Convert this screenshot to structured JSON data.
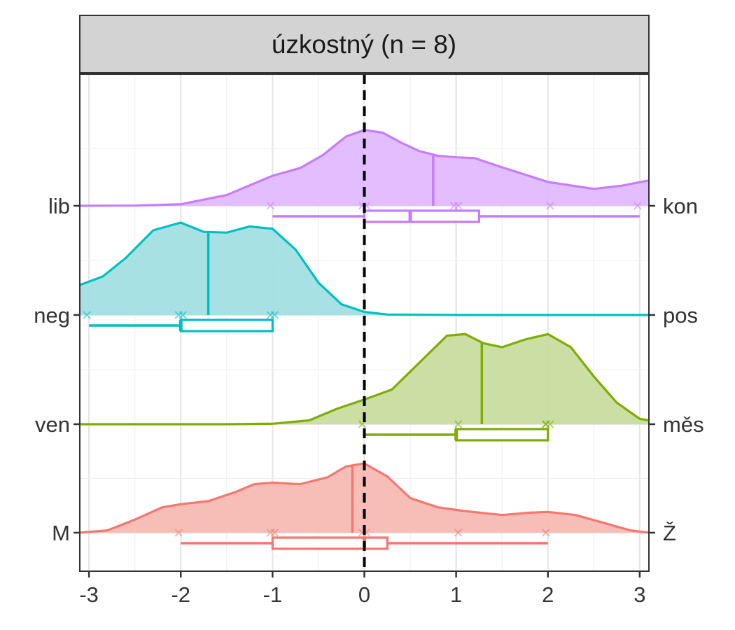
{
  "chart_data": {
    "type": "ridgeline",
    "panel_title": "úzkostný (n = 8)",
    "xlabel": "",
    "ylabel": "",
    "xlim": [
      -3.1,
      3.1
    ],
    "x_ticks": [
      -3,
      -2,
      -1,
      0,
      1,
      2,
      3
    ],
    "x_tick_labels": [
      "-3",
      "-2",
      "-1",
      "0",
      "1",
      "2",
      "3"
    ],
    "reference_line_x": 0,
    "grid": true,
    "series": [
      {
        "left_label": "lib",
        "right_label": "kon",
        "color": "#C77CFF",
        "fill": "#E2BBFF",
        "density": [
          [
            -3.1,
            0
          ],
          [
            -2.5,
            0.003
          ],
          [
            -2.0,
            0.02
          ],
          [
            -1.5,
            0.14
          ],
          [
            -1.0,
            0.39
          ],
          [
            -0.7,
            0.49
          ],
          [
            -0.45,
            0.66
          ],
          [
            -0.2,
            0.9
          ],
          [
            0.0,
            0.985
          ],
          [
            0.2,
            0.95
          ],
          [
            0.4,
            0.82
          ],
          [
            0.6,
            0.71
          ],
          [
            0.8,
            0.65
          ],
          [
            1.0,
            0.63
          ],
          [
            1.2,
            0.62
          ],
          [
            1.5,
            0.5
          ],
          [
            2.0,
            0.31
          ],
          [
            2.5,
            0.22
          ],
          [
            2.8,
            0.26
          ],
          [
            3.1,
            0.33
          ]
        ],
        "observations": [
          -1,
          0,
          0,
          1,
          1,
          2,
          3
        ],
        "mean": 0.75,
        "box": {
          "whisker_low": -1,
          "q1": 0,
          "median": 0.5,
          "q3": 1.25,
          "whisker_high": 3
        }
      },
      {
        "left_label": "neg",
        "right_label": "pos",
        "color": "#00BFC4",
        "fill": "#A3DFE1",
        "density": [
          [
            -3.1,
            0.39
          ],
          [
            -2.85,
            0.5
          ],
          [
            -2.6,
            0.74
          ],
          [
            -2.3,
            1.1
          ],
          [
            -2.0,
            1.2
          ],
          [
            -1.75,
            1.08
          ],
          [
            -1.5,
            1.07
          ],
          [
            -1.25,
            1.15
          ],
          [
            -1.0,
            1.12
          ],
          [
            -0.75,
            0.85
          ],
          [
            -0.5,
            0.42
          ],
          [
            -0.25,
            0.14
          ],
          [
            0.0,
            0.04
          ],
          [
            0.25,
            0.006
          ],
          [
            1.0,
            0
          ],
          [
            3.1,
            0
          ]
        ],
        "observations": [
          -3,
          -2,
          -2,
          -1,
          -1
        ],
        "mean": -1.7,
        "box": {
          "whisker_low": -3,
          "q1": -2,
          "median": -2,
          "q3": -1,
          "whisker_high": -1
        }
      },
      {
        "left_label": "ven",
        "right_label": "měs",
        "color": "#7CAE00",
        "fill": "#C8DC9E",
        "density": [
          [
            -3.1,
            0
          ],
          [
            -1.5,
            0
          ],
          [
            -1.0,
            0.006
          ],
          [
            -0.6,
            0.05
          ],
          [
            -0.3,
            0.2
          ],
          [
            0.0,
            0.32
          ],
          [
            0.3,
            0.45
          ],
          [
            0.6,
            0.8
          ],
          [
            0.9,
            1.15
          ],
          [
            1.1,
            1.17
          ],
          [
            1.3,
            1.05
          ],
          [
            1.5,
            1.0
          ],
          [
            1.75,
            1.1
          ],
          [
            2.0,
            1.17
          ],
          [
            2.25,
            1.0
          ],
          [
            2.5,
            0.62
          ],
          [
            2.75,
            0.28
          ],
          [
            3.0,
            0.07
          ],
          [
            3.1,
            0.05
          ]
        ],
        "observations": [
          0,
          1,
          2,
          2,
          2
        ],
        "mean": 1.28,
        "box": {
          "whisker_low": 0,
          "q1": 1,
          "median": 1,
          "q3": 2,
          "whisker_high": 2
        }
      },
      {
        "left_label": "M",
        "right_label": "Ž",
        "color": "#F8766D",
        "fill": "#F7BAB4",
        "density": [
          [
            -3.1,
            0
          ],
          [
            -2.8,
            0.03
          ],
          [
            -2.5,
            0.17
          ],
          [
            -2.2,
            0.33
          ],
          [
            -2.0,
            0.37
          ],
          [
            -1.7,
            0.41
          ],
          [
            -1.4,
            0.53
          ],
          [
            -1.2,
            0.63
          ],
          [
            -1.0,
            0.65
          ],
          [
            -0.7,
            0.63
          ],
          [
            -0.4,
            0.72
          ],
          [
            -0.2,
            0.86
          ],
          [
            0.0,
            0.9
          ],
          [
            0.25,
            0.73
          ],
          [
            0.5,
            0.45
          ],
          [
            0.8,
            0.33
          ],
          [
            1.1,
            0.28
          ],
          [
            1.5,
            0.23
          ],
          [
            1.8,
            0.26
          ],
          [
            2.0,
            0.27
          ],
          [
            2.3,
            0.23
          ],
          [
            2.6,
            0.13
          ],
          [
            2.9,
            0.03
          ],
          [
            3.1,
            0
          ]
        ],
        "observations": [
          -2,
          -1,
          -1,
          0,
          0,
          1,
          2
        ],
        "mean": -0.13,
        "box": {
          "whisker_low": -2,
          "q1": -1,
          "median": 0,
          "q3": 0.25,
          "whisker_high": 2
        }
      }
    ]
  }
}
